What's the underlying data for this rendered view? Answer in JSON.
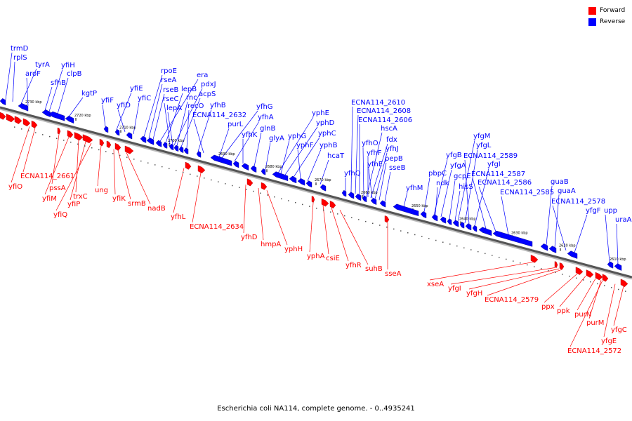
{
  "caption": "Escherichia coli NA114, complete genome. - 0..4935241",
  "legend": [
    {
      "label": "Forward",
      "color": "#ff0000"
    },
    {
      "label": "Reverse",
      "color": "#0000ff"
    }
  ],
  "colors": {
    "forward": "#ff0000",
    "reverse": "#0000ff",
    "backbone": "#555555"
  },
  "ticks": [
    "2730 kbp",
    "2720 kbp",
    "2710 kbp",
    "2700 kbp",
    "2690 kbp",
    "2680 kbp",
    "2670 kbp",
    "2660 kbp",
    "2650 kbp",
    "2640 kbp",
    "2630 kbp",
    "2620 kbp",
    "2610 kbp"
  ],
  "reverse_labels": [
    "trmD",
    "rplS",
    "tyrA",
    "aroF",
    "yfiH",
    "clpB",
    "sfhB",
    "kgtP",
    "yfiF",
    "yfiE",
    "yfiD",
    "yfiC",
    "rpoE",
    "rseA",
    "era",
    "rseB",
    "lepB",
    "pdxJ",
    "rseC",
    "rnc",
    "acpS",
    "lepA",
    "recO",
    "yfhB",
    "ECNA114_2632",
    "yfhG",
    "purL",
    "yfhA",
    "yfhK",
    "glnB",
    "yphE",
    "yphD",
    "yphG",
    "yphC",
    "glyA",
    "yphF",
    "yphB",
    "hcaT",
    "yfhQ",
    "ECNA114_2610",
    "ECNA114_2608",
    "ECNA114_2606",
    "hscA",
    "yfhO",
    "fdx",
    "yfhF",
    "yfhJ",
    "pepB",
    "yfhE",
    "sseB",
    "yfhM",
    "yfgM",
    "yfgB",
    "pbpC",
    "yfgL",
    "ECNA114_2589",
    "yfgA",
    "ndk",
    "gcpE",
    "yfgI",
    "hisS",
    "ECNA114_2587",
    "ECNA114_2586",
    "ECNA114_2585",
    "guaB",
    "guaA",
    "ECNA114_2578",
    "yfgF",
    "upp",
    "uraA"
  ],
  "forward_labels": [
    "ECNA114_2661",
    "yfiO",
    "pssA",
    "yfiM",
    "trxC",
    "yfiP",
    "yfiQ",
    "ung",
    "yfiK",
    "srmB",
    "nadB",
    "yfhL",
    "ECNA114_2634",
    "yfhD",
    "hmpA",
    "yphH",
    "yphA",
    "csiE",
    "yfhR",
    "suhB",
    "sseA",
    "xseA",
    "yfgI",
    "yfgH",
    "ECNA114_2579",
    "ppx",
    "ppk",
    "purN",
    "purM",
    "yfgC",
    "yfgE",
    "ECNA114_2572"
  ]
}
